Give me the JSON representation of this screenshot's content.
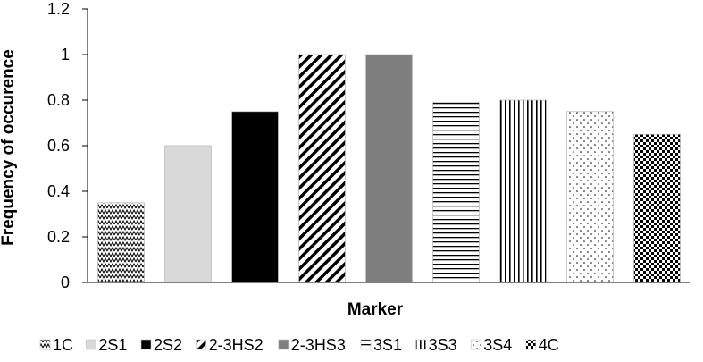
{
  "chart_data": {
    "type": "bar",
    "categories": [
      "1C",
      "2S1",
      "2S2",
      "2-3HS2",
      "2-3HS3",
      "3S1",
      "3S3",
      "3S4",
      "4C"
    ],
    "values": [
      0.35,
      0.6,
      0.75,
      1.0,
      1.0,
      0.79,
      0.8,
      0.75,
      0.65
    ],
    "patterns": [
      "zigzag",
      "light-gray",
      "black",
      "diagonal",
      "dark-gray",
      "horizontal",
      "vertical",
      "dots",
      "checker"
    ],
    "xlabel": "Marker",
    "ylabel": "Frequency of occurence",
    "ylim": [
      0,
      1.2
    ],
    "yticks": [
      "0",
      "0.2",
      "0.4",
      "0.6",
      "0.8",
      "1",
      "1.2"
    ],
    "grid": false,
    "legend_position": "bottom",
    "legend": [
      "1C",
      "2S1",
      "2S2",
      "2-3HS2",
      "2-3HS3",
      "3S1",
      "3S3",
      "3S4",
      "4C"
    ]
  }
}
